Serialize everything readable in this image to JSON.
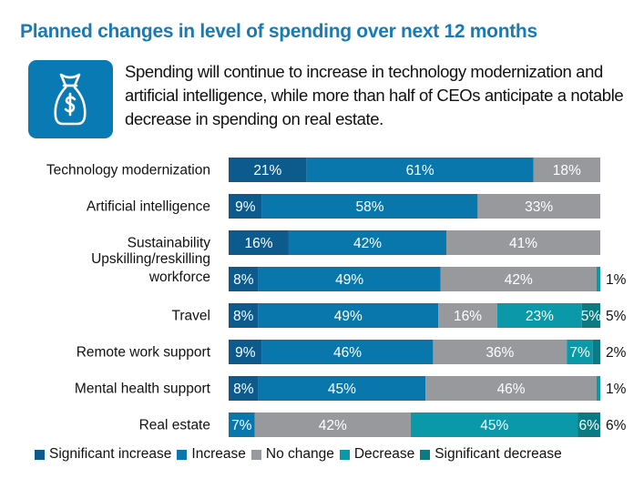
{
  "chart_data": {
    "type": "bar",
    "orientation": "horizontal",
    "stacked": true,
    "title": "Planned changes in level of spending over next 12 months",
    "subtitle": "Spending will continue to increase in technology modernization and artificial intelligence, while more than half of CEOs anticipate a notable decrease in spending on real estate.",
    "icon": "money-bag-dollar-icon",
    "xlabel": "",
    "ylabel": "",
    "xlim": [
      0,
      100
    ],
    "grid": false,
    "legend_position": "bottom",
    "categories": [
      "Technology modernization",
      "Artificial intelligence",
      "Sustainability",
      "Upskilling/reskilling workforce",
      "Travel",
      "Remote work support",
      "Mental health support",
      "Real estate"
    ],
    "series": [
      {
        "name": "Significant increase",
        "color": "#0d5a8c",
        "values": [
          21,
          9,
          16,
          8,
          8,
          9,
          8,
          0
        ]
      },
      {
        "name": "Increase",
        "color": "#0a77ac",
        "values": [
          61,
          58,
          42,
          49,
          49,
          46,
          45,
          7
        ]
      },
      {
        "name": "No change",
        "color": "#97999c",
        "values": [
          18,
          33,
          41,
          42,
          16,
          36,
          46,
          42
        ]
      },
      {
        "name": "Decrease",
        "color": "#0b98a8",
        "values": [
          0,
          0,
          0,
          1,
          23,
          7,
          1,
          45
        ]
      },
      {
        "name": "Significant decrease",
        "color": "#0b7a82",
        "values": [
          0,
          0,
          0,
          0,
          5,
          2,
          0,
          6
        ]
      }
    ],
    "data_labels": [
      [
        "21%",
        "61%",
        "18%",
        "",
        ""
      ],
      [
        "9%",
        "58%",
        "33%",
        "",
        ""
      ],
      [
        "16%",
        "42%",
        "41%",
        "",
        ""
      ],
      [
        "8%",
        "49%",
        "42%",
        "1%",
        ""
      ],
      [
        "8%",
        "49%",
        "16%",
        "23%",
        "5%"
      ],
      [
        "9%",
        "46%",
        "36%",
        "7%",
        "2%"
      ],
      [
        "8%",
        "45%",
        "46%",
        "1%",
        ""
      ],
      [
        "",
        "7%",
        "42%",
        "45%",
        "6%"
      ]
    ],
    "outside_labels": [
      "",
      "",
      "",
      "1%",
      "5%",
      "2%",
      "1%",
      "6%"
    ]
  },
  "colors": {
    "title": "#1a7ab5",
    "icon_bg": "#0a7ab5"
  }
}
